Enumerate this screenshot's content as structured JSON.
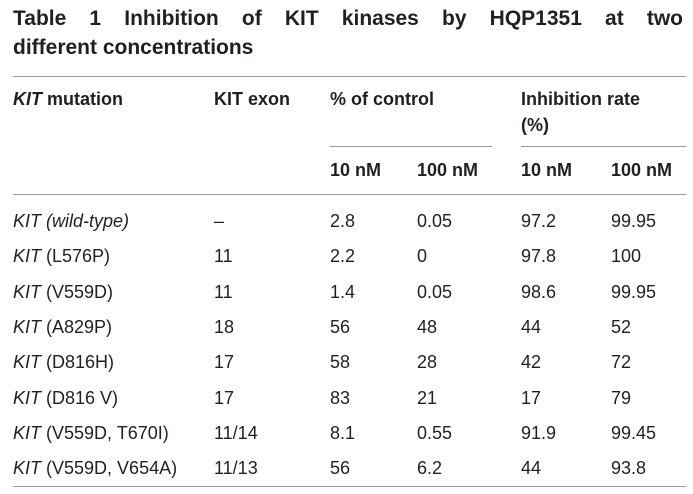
{
  "title": {
    "line1": "Table 1 Inhibition of KIT kinases by HQP1351 at two",
    "line2": "different concentrations"
  },
  "header": {
    "mutation_italic": "KIT",
    "mutation_rest": " mutation",
    "exon": "KIT exon",
    "pct_control": "% of control",
    "inhibition_line1": "Inhibition rate",
    "inhibition_line2": "(%)",
    "sub": [
      "10 nM",
      "100 nM",
      "10 nM",
      "100 nM"
    ]
  },
  "rows": [
    {
      "gene": "KIT",
      "mut": " (wild-type)",
      "mut_italic": true,
      "exon": "–",
      "pc10": "2.8",
      "pc100": "0.05",
      "ir10": "97.2",
      "ir100": "99.95"
    },
    {
      "gene": "KIT",
      "mut": " (L576P)",
      "mut_italic": false,
      "exon": "11",
      "pc10": "2.2",
      "pc100": "0",
      "ir10": "97.8",
      "ir100": "100"
    },
    {
      "gene": "KIT",
      "mut": " (V559D)",
      "mut_italic": false,
      "exon": "11",
      "pc10": "1.4",
      "pc100": "0.05",
      "ir10": "98.6",
      "ir100": "99.95"
    },
    {
      "gene": "KIT",
      "mut": " (A829P)",
      "mut_italic": false,
      "exon": "18",
      "pc10": "56",
      "pc100": "48",
      "ir10": "44",
      "ir100": "52"
    },
    {
      "gene": "KIT",
      "mut": " (D816H)",
      "mut_italic": false,
      "exon": "17",
      "pc10": "58",
      "pc100": "28",
      "ir10": "42",
      "ir100": "72"
    },
    {
      "gene": "KIT",
      "mut": " (D816 V)",
      "mut_italic": false,
      "exon": "17",
      "pc10": "83",
      "pc100": "21",
      "ir10": "17",
      "ir100": "79"
    },
    {
      "gene": "KIT",
      "mut": " (V559D, T670I)",
      "mut_italic": false,
      "exon": "11/14",
      "pc10": "8.1",
      "pc100": "0.55",
      "ir10": "91.9",
      "ir100": "99.45"
    },
    {
      "gene": "KIT",
      "mut": " (V559D, V654A)",
      "mut_italic": false,
      "exon": "11/13",
      "pc10": "56",
      "pc100": "6.2",
      "ir10": "44",
      "ir100": "93.8"
    }
  ]
}
